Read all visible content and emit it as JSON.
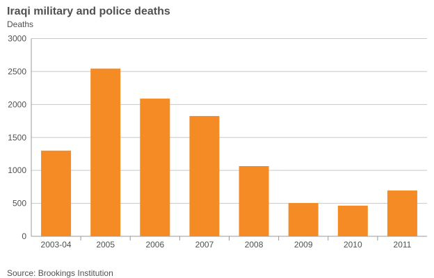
{
  "chart_data": {
    "type": "bar",
    "title": "Iraqi military and police deaths",
    "ylabel": "Deaths",
    "xlabel": "",
    "categories": [
      "2003-04",
      "2005",
      "2006",
      "2007",
      "2008",
      "2009",
      "2010",
      "2011"
    ],
    "values": [
      1300,
      2545,
      2090,
      1825,
      1065,
      505,
      465,
      695
    ],
    "ylim": [
      0,
      3000
    ],
    "yticks": [
      "0",
      "500",
      "1000",
      "1500",
      "2000",
      "2500",
      "3000"
    ],
    "grid": true,
    "bar_color": "#f58b24"
  },
  "source": "Source: Brookings Institution"
}
